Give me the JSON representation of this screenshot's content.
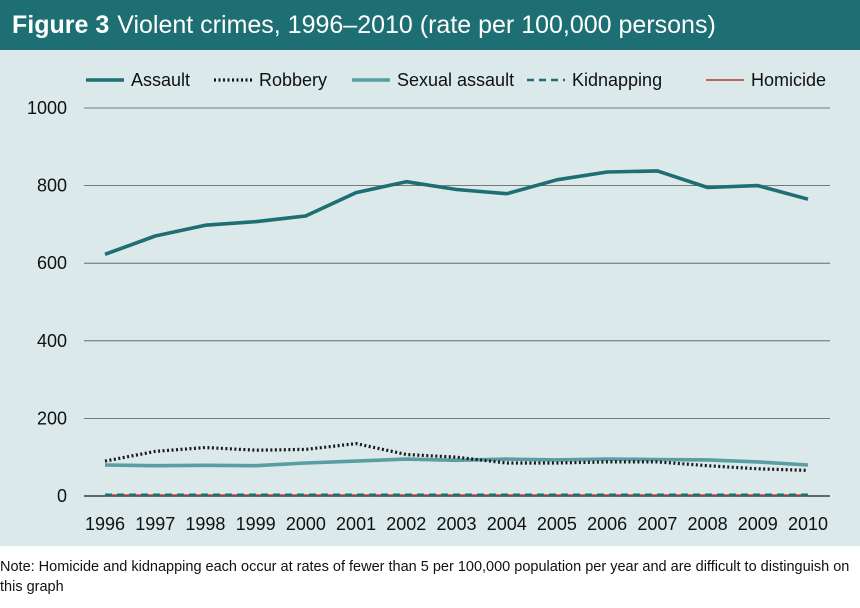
{
  "figure": {
    "label": "Figure 3",
    "title": "Violent crimes, 1996–2010 (rate per 100,000 persons)"
  },
  "note": "Note: Homicide and kidnapping each occur at rates of fewer than 5 per 100,000 population per year and are difficult to distinguish on this graph",
  "chart_data": {
    "type": "line",
    "title": "Violent crimes, 1996–2010 (rate per 100,000 persons)",
    "xlabel": "",
    "ylabel": "",
    "ylim": [
      0,
      1000
    ],
    "yticks": [
      0,
      200,
      400,
      600,
      800,
      1000
    ],
    "grid": true,
    "legend_position": "top",
    "x": [
      "1996",
      "1997",
      "1998",
      "1999",
      "2000",
      "2001",
      "2002",
      "2003",
      "2004",
      "2005",
      "2006",
      "2007",
      "2008",
      "2009",
      "2010"
    ],
    "series": [
      {
        "name": "Assault",
        "style": "solid",
        "color": "#1e6f73",
        "values": [
          623,
          670,
          698,
          707,
          722,
          782,
          810,
          790,
          779,
          815,
          835,
          838,
          795,
          800,
          765
        ]
      },
      {
        "name": "Robbery",
        "style": "dotted",
        "color": "#1a1a1a",
        "values": [
          90,
          115,
          125,
          118,
          120,
          135,
          107,
          100,
          85,
          85,
          88,
          88,
          78,
          70,
          66
        ]
      },
      {
        "name": "Sexual assault",
        "style": "solid",
        "color": "#5a9ea3",
        "values": [
          80,
          78,
          79,
          78,
          85,
          90,
          95,
          92,
          95,
          93,
          95,
          94,
          93,
          88,
          80
        ]
      },
      {
        "name": "Kidnapping",
        "style": "dashed",
        "color": "#1e6f73",
        "values": [
          3,
          3,
          3,
          3,
          3,
          3,
          3,
          3,
          3,
          3,
          3,
          3,
          3,
          3,
          3
        ]
      },
      {
        "name": "Homicide",
        "style": "solid",
        "color": "#b03a2e",
        "values": [
          2,
          2,
          2,
          2,
          2,
          2,
          2,
          2,
          2,
          2,
          2,
          2,
          2,
          2,
          2
        ]
      }
    ]
  }
}
